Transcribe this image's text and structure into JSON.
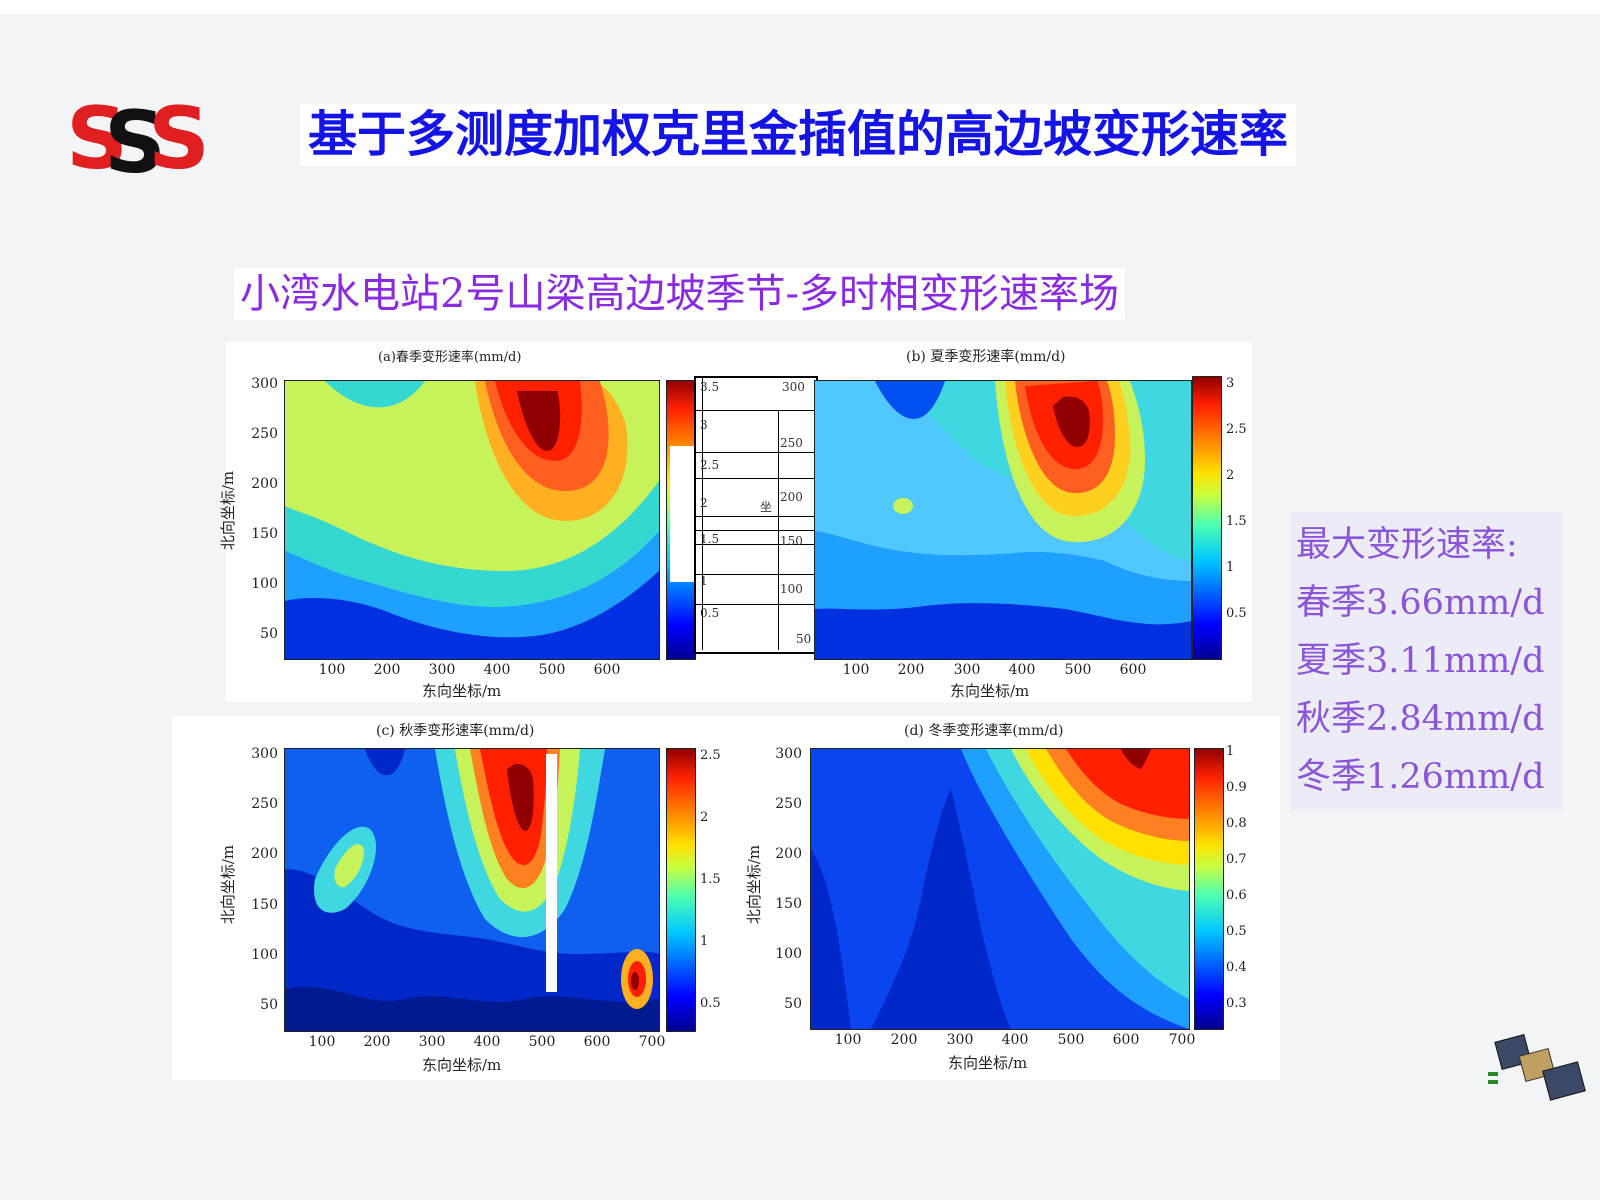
{
  "header": {
    "logo_text": "SSS",
    "title": "基于多测度加权克里金插值的高边坡变形速率"
  },
  "subtitle": "小湾水电站2号山梁高边坡季节-多时相变形速率场",
  "panels": [
    {
      "title": "(a)春季变形速率(mm/d)",
      "xlabel": "东向坐标/m",
      "ylabel": "北向坐标/m",
      "yticks": [
        "300",
        "250",
        "200",
        "150",
        "100",
        "50"
      ],
      "xticks": [
        "100",
        "200",
        "300",
        "400",
        "500",
        "600"
      ],
      "cticks": []
    },
    {
      "title": "(b) 夏季变形速率(mm/d)",
      "xlabel": "东向坐标/m",
      "ylabel": "",
      "yticks": [
        "300",
        "250",
        "200",
        "150",
        "100",
        "50"
      ],
      "xticks": [
        "100",
        "200",
        "300",
        "400",
        "500",
        "600"
      ],
      "cticks": [
        "3",
        "2.5",
        "2",
        "1.5",
        "1",
        "0.5"
      ]
    },
    {
      "title": "(c) 秋季变形速率(mm/d)",
      "xlabel": "东向坐标/m",
      "ylabel": "北向坐标/m",
      "yticks": [
        "300",
        "250",
        "200",
        "150",
        "100",
        "50"
      ],
      "xticks": [
        "100",
        "200",
        "300",
        "400",
        "500",
        "600",
        "700"
      ],
      "cticks": [
        "2.5",
        "2",
        "1.5",
        "1",
        "0.5"
      ]
    },
    {
      "title": "(d) 冬季变形速率(mm/d)",
      "xlabel": "东向坐标/m",
      "ylabel": "北向坐标/m",
      "yticks": [
        "300",
        "250",
        "200",
        "150",
        "100",
        "50"
      ],
      "xticks": [
        "100",
        "200",
        "300",
        "400",
        "500",
        "600",
        "700"
      ],
      "cticks": [
        "1",
        "0.9",
        "0.8",
        "0.7",
        "0.6",
        "0.5",
        "0.4",
        "0.3"
      ]
    }
  ],
  "overlay_fragments": {
    "left": [
      "3.5",
      "3",
      "2.5",
      "2",
      "1.5",
      "1",
      "0.5"
    ],
    "right": [
      "300",
      "250",
      "200",
      "150",
      "100",
      "50"
    ],
    "stray_char": "坐"
  },
  "info": {
    "heading": "最大变形速率:",
    "lines": [
      "春季3.66mm/d",
      "夏季3.11mm/d",
      "秋季2.84mm/d",
      "冬季1.26mm/d"
    ]
  },
  "colors": {
    "title": "#1414e6",
    "subtitle": "#8a2be2",
    "info_text": "#8a55d8",
    "logo_red": "#e02020",
    "logo_black": "#111111"
  },
  "icons": {
    "satellite": "satellite-icon"
  }
}
